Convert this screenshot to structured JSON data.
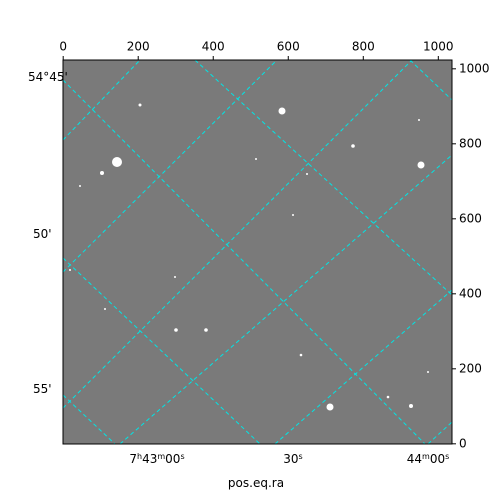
{
  "chart_data": {
    "type": "image",
    "xlabel": "pos.eq.ra",
    "xlim": [
      -0.5,
      1036.5
    ],
    "ylim": [
      -0.5,
      1023.5
    ],
    "xticks": [
      0,
      200,
      400,
      600,
      800,
      1000
    ],
    "yticks": [
      0,
      200,
      400,
      600,
      800,
      1000
    ],
    "dec_tick_labels": [
      "54°45'",
      "50'",
      "55'"
    ],
    "ra_tick_labels": [
      "7h43m00s",
      "30s",
      "44m00s"
    ],
    "grid_color": "#00e5e5"
  }
}
